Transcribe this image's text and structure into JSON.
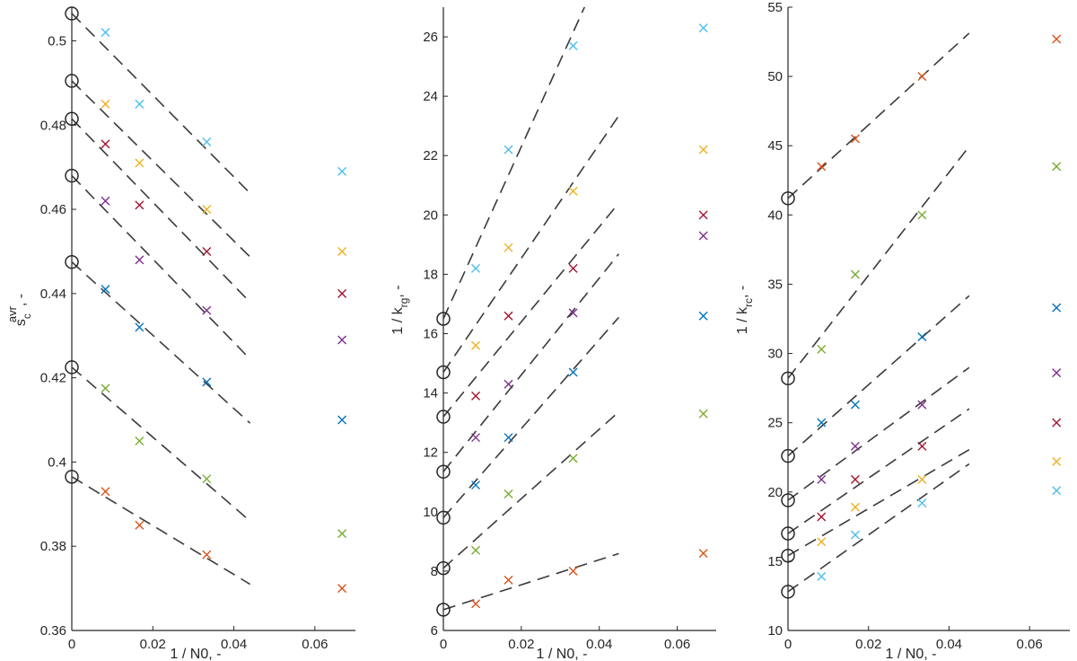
{
  "palette": [
    "#4dbeee",
    "#edb120",
    "#a2142f",
    "#7e2f8e",
    "#0072bd",
    "#77ac30",
    "#d95319"
  ],
  "chart_data": [
    {
      "type": "scatter",
      "xlabel": "1 / N0, -",
      "ylabel_text": "s",
      "ylabel_sub": "c",
      "ylabel_sup": "avr",
      "ylabel_tail": ", -",
      "xlim": [
        0,
        0.07
      ],
      "ylim": [
        0.36,
        0.508
      ],
      "xticks": [
        0,
        0.02,
        0.04,
        0.06
      ],
      "xtick_labels": [
        "0",
        "0.02",
        "0.04",
        "0.06"
      ],
      "yticks": [
        0.36,
        0.38,
        0.4,
        0.42,
        0.44,
        0.46,
        0.48,
        0.5
      ],
      "ytick_labels": [
        "0.36",
        "0.38",
        "0.4",
        "0.42",
        "0.44",
        "0.46",
        "0.48",
        "0.5"
      ],
      "fit_x_end": 0.044,
      "series": [
        {
          "color_index": 0,
          "x": [
            0.0083,
            0.0167,
            0.0333,
            0.0667
          ],
          "y": [
            0.502,
            0.485,
            0.476,
            0.469
          ],
          "intercept": 0.5065,
          "slope": -0.97
        },
        {
          "color_index": 1,
          "x": [
            0.0083,
            0.0167,
            0.0333,
            0.0667
          ],
          "y": [
            0.485,
            0.471,
            0.46,
            0.45
          ],
          "intercept": 0.4905,
          "slope": -0.95
        },
        {
          "color_index": 2,
          "x": [
            0.0083,
            0.0167,
            0.0333,
            0.0667
          ],
          "y": [
            0.4755,
            0.461,
            0.45,
            0.44
          ],
          "intercept": 0.4815,
          "slope": -0.99
        },
        {
          "color_index": 3,
          "x": [
            0.0083,
            0.0167,
            0.0333,
            0.0667
          ],
          "y": [
            0.462,
            0.448,
            0.436,
            0.429
          ],
          "intercept": 0.468,
          "slope": -0.99
        },
        {
          "color_index": 4,
          "x": [
            0.0083,
            0.0167,
            0.0333,
            0.0667
          ],
          "y": [
            0.441,
            0.432,
            0.419,
            0.41
          ],
          "intercept": 0.4475,
          "slope": -0.87
        },
        {
          "color_index": 5,
          "x": [
            0.0083,
            0.0167,
            0.0333,
            0.0667
          ],
          "y": [
            0.4175,
            0.405,
            0.396,
            0.383
          ],
          "intercept": 0.4225,
          "slope": -0.83
        },
        {
          "color_index": 6,
          "x": [
            0.0083,
            0.0167,
            0.0333,
            0.0667
          ],
          "y": [
            0.393,
            0.385,
            0.378,
            0.37
          ],
          "intercept": 0.3965,
          "slope": -0.58
        }
      ]
    },
    {
      "type": "scatter",
      "xlabel": "1 / N0, -",
      "ylabel_text": "1 / k",
      "ylabel_sub": "rg",
      "ylabel_sup": "",
      "ylabel_tail": ", -",
      "xlim": [
        0,
        0.07
      ],
      "ylim": [
        6,
        27
      ],
      "xticks": [
        0,
        0.02,
        0.04,
        0.06
      ],
      "xtick_labels": [
        "0",
        "0.02",
        "0.04",
        "0.06"
      ],
      "yticks": [
        6,
        8,
        10,
        12,
        14,
        16,
        18,
        20,
        22,
        24,
        26
      ],
      "ytick_labels": [
        "6",
        "8",
        "10",
        "12",
        "14",
        "16",
        "18",
        "20",
        "22",
        "24",
        "26"
      ],
      "fit_x_end": 0.045,
      "series": [
        {
          "color_index": 0,
          "x": [
            0.0083,
            0.0167,
            0.0333,
            0.0667
          ],
          "y": [
            18.2,
            22.2,
            25.7,
            26.3
          ],
          "intercept": 16.5,
          "slope": 290
        },
        {
          "color_index": 1,
          "x": [
            0.0083,
            0.0167,
            0.0333,
            0.0667
          ],
          "y": [
            15.6,
            18.9,
            20.8,
            22.2
          ],
          "intercept": 14.7,
          "slope": 192
        },
        {
          "color_index": 2,
          "x": [
            0.0083,
            0.0167,
            0.0333,
            0.0667
          ],
          "y": [
            13.9,
            16.6,
            18.2,
            20
          ],
          "intercept": 13.2,
          "slope": 160
        },
        {
          "color_index": 3,
          "x": [
            0.0083,
            0.0167,
            0.0333,
            0.0667
          ],
          "y": [
            12.5,
            14.3,
            16.7,
            19.3
          ],
          "intercept": 11.35,
          "slope": 163
        },
        {
          "color_index": 4,
          "x": [
            0.0083,
            0.0167,
            0.0333,
            0.0667
          ],
          "y": [
            10.9,
            12.5,
            14.7,
            16.6
          ],
          "intercept": 9.8,
          "slope": 150
        },
        {
          "color_index": 5,
          "x": [
            0.0083,
            0.0167,
            0.0333,
            0.0667
          ],
          "y": [
            8.7,
            10.6,
            11.8,
            13.3
          ],
          "intercept": 8.1,
          "slope": 117
        },
        {
          "color_index": 6,
          "x": [
            0.0083,
            0.0167,
            0.0333,
            0.0667
          ],
          "y": [
            6.9,
            7.7,
            8.0,
            8.6
          ],
          "intercept": 6.7,
          "slope": 42
        }
      ]
    },
    {
      "type": "scatter",
      "xlabel": "1 / N0, -",
      "ylabel_text": "1 / k",
      "ylabel_sub": "rc",
      "ylabel_sup": "",
      "ylabel_tail": ", -",
      "xlim": [
        0,
        0.07
      ],
      "ylim": [
        10,
        55
      ],
      "xticks": [
        0,
        0.02,
        0.04,
        0.06
      ],
      "xtick_labels": [
        "0",
        "0.02",
        "0.04",
        "0.06"
      ],
      "yticks": [
        10,
        15,
        20,
        25,
        30,
        35,
        40,
        45,
        50,
        55
      ],
      "ytick_labels": [
        "10",
        "15",
        "20",
        "25",
        "30",
        "35",
        "40",
        "45",
        "50",
        "55"
      ],
      "fit_x_end": 0.045,
      "series": [
        {
          "color_index": 6,
          "x": [
            0.0083,
            0.0167,
            0.0333,
            0.0667
          ],
          "y": [
            43.5,
            45.5,
            50,
            52.7
          ],
          "intercept": 41.2,
          "slope": 265
        },
        {
          "color_index": 5,
          "x": [
            0.0083,
            0.0167,
            0.0333,
            0.0667
          ],
          "y": [
            30.3,
            35.7,
            40,
            43.5
          ],
          "intercept": 28.2,
          "slope": 372
        },
        {
          "color_index": 4,
          "x": [
            0.0083,
            0.0167,
            0.0333,
            0.0667
          ],
          "y": [
            25,
            26.3,
            31.2,
            33.3
          ],
          "intercept": 22.6,
          "slope": 257
        },
        {
          "color_index": 3,
          "x": [
            0.0083,
            0.0167,
            0.0333,
            0.0667
          ],
          "y": [
            20.9,
            23.3,
            26.3,
            28.6
          ],
          "intercept": 19.4,
          "slope": 213
        },
        {
          "color_index": 2,
          "x": [
            0.0083,
            0.0167,
            0.0333,
            0.0667
          ],
          "y": [
            18.2,
            20.9,
            23.3,
            25
          ],
          "intercept": 17.0,
          "slope": 200
        },
        {
          "color_index": 1,
          "x": [
            0.0083,
            0.0167,
            0.0333,
            0.0667
          ],
          "y": [
            16.4,
            18.9,
            20.9,
            22.2
          ],
          "intercept": 15.4,
          "slope": 170
        },
        {
          "color_index": 0,
          "x": [
            0.0083,
            0.0167,
            0.0333,
            0.0667
          ],
          "y": [
            13.9,
            16.9,
            19.2,
            20.1
          ],
          "intercept": 12.8,
          "slope": 205
        }
      ]
    }
  ]
}
